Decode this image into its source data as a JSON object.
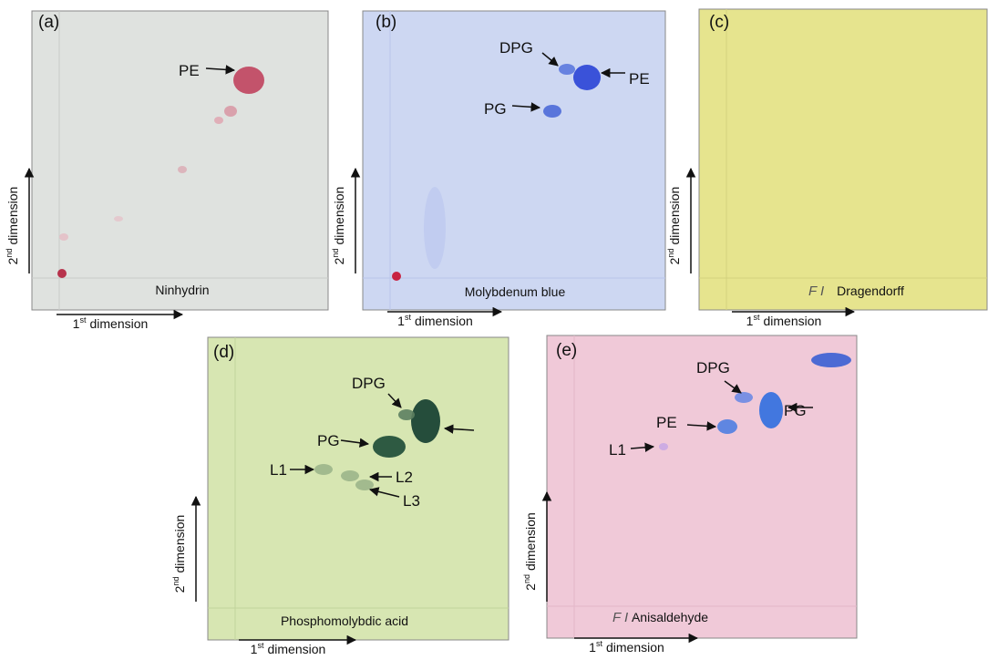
{
  "panels": [
    {
      "label": "(a)",
      "stain": "Ninhydrin",
      "spots": [
        "PE"
      ],
      "y_axis": {
        "number": "2",
        "suffix": "nd",
        "word": "dimension"
      },
      "x_axis": {
        "number": "1",
        "suffix": "st",
        "word": "dimension"
      }
    },
    {
      "label": "(b)",
      "stain": "Molybdenum blue",
      "spots": [
        "DPG",
        "PE",
        "PG"
      ],
      "y_axis": {
        "number": "2",
        "suffix": "nd",
        "word": "dimension"
      },
      "x_axis": {
        "number": "1",
        "suffix": "st",
        "word": "dimension"
      }
    },
    {
      "label": "(c)",
      "stain": "Dragendorff",
      "pencil_note": "F I",
      "spots": [],
      "y_axis": {
        "number": "2",
        "suffix": "nd",
        "word": "dimension"
      },
      "x_axis": {
        "number": "1",
        "suffix": "st",
        "word": "dimension"
      }
    },
    {
      "label": "(d)",
      "stain": "Phosphomolybdic acid",
      "spots": [
        "DPG",
        "PG",
        "L1",
        "L2",
        "L3"
      ],
      "y_axis": {
        "number": "2",
        "suffix": "nd",
        "word": "dimension"
      },
      "x_axis": {
        "number": "1",
        "suffix": "st",
        "word": "dimension"
      }
    },
    {
      "label": "(e)",
      "stain": "Anisaldehyde",
      "pencil_note": "F I -",
      "spots": [
        "DPG",
        "PG",
        "PE",
        "L1"
      ],
      "y_axis": {
        "number": "2",
        "suffix": "nd",
        "word": "dimension"
      },
      "x_axis": {
        "number": "1",
        "suffix": "st",
        "word": "dimension"
      }
    }
  ]
}
